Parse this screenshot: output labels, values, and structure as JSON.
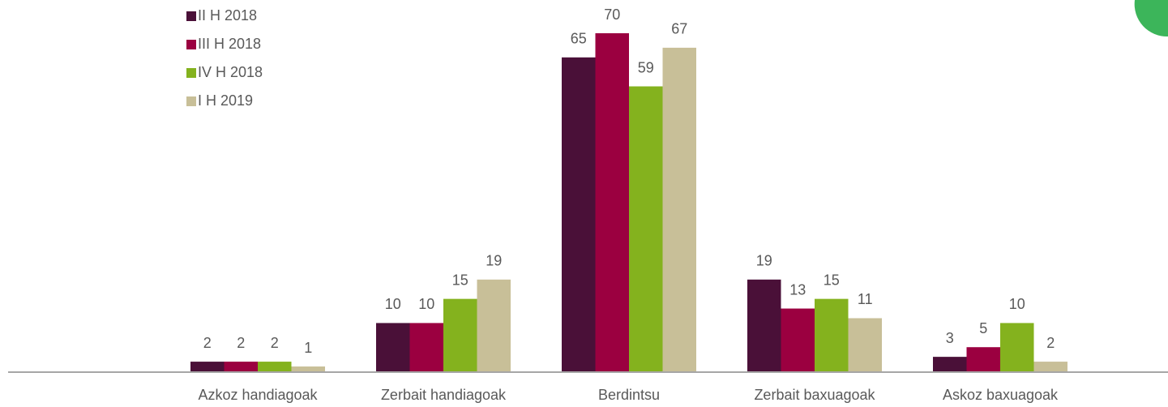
{
  "chart_data": {
    "type": "bar",
    "categories": [
      "Azkoz handiagoak",
      "Zerbait handiagoak",
      "Berdintsu",
      "Zerbait baxuagoak",
      "Askoz baxuagoak"
    ],
    "series": [
      {
        "name": "II H 2018",
        "color": "#4a1038",
        "values": [
          2,
          10,
          65,
          19,
          3
        ]
      },
      {
        "name": "III H 2018",
        "color": "#9b0040",
        "values": [
          2,
          10,
          70,
          13,
          5
        ]
      },
      {
        "name": "IV H 2018",
        "color": "#84b21e",
        "values": [
          2,
          15,
          59,
          15,
          10
        ]
      },
      {
        "name": "I H 2019",
        "color": "#c8bf98",
        "values": [
          1,
          19,
          67,
          11,
          2
        ]
      }
    ],
    "ylim": [
      0,
      70
    ],
    "legend": "top-left"
  }
}
